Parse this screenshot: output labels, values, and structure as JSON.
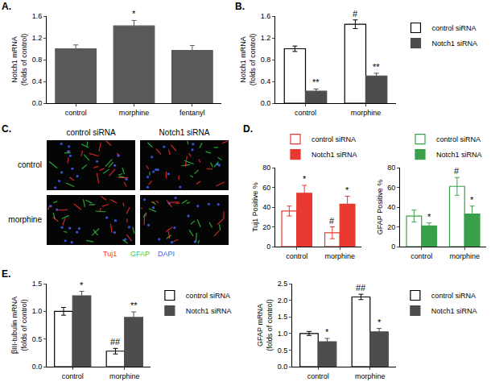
{
  "chart_data": [
    {
      "panel": "A.",
      "type": "bar",
      "categories": [
        "control",
        "morphine",
        "fentanyl"
      ],
      "ylabel": [
        "Notch1 mRNA",
        "(folds of control)"
      ],
      "ylim": [
        0,
        1.6
      ],
      "yticks": [
        {
          "value": 0,
          "label": "0.0"
        },
        0.4,
        0.8,
        1.2,
        1.6
      ],
      "series": [
        {
          "values": [
            1.0,
            1.42,
            0.97
          ],
          "errors": [
            0.07,
            0.1,
            0.09
          ],
          "color": "#595959"
        }
      ],
      "annotations": [
        {
          "category": "morphine",
          "series": 0,
          "text": "*"
        }
      ]
    },
    {
      "panel": "B.",
      "type": "bar",
      "categories": [
        "control",
        "morphine"
      ],
      "ylabel": [
        "Notch1 mRNA",
        "(folds of control)"
      ],
      "ylim": [
        0,
        1.6
      ],
      "yticks": [
        {
          "value": 0,
          "label": "0.0"
        },
        0.4,
        0.8,
        1.2,
        1.6
      ],
      "legend": "right",
      "series": [
        {
          "name": "control siRNA",
          "values": [
            1.0,
            1.45
          ],
          "errors": [
            0.05,
            0.08
          ],
          "color": "#000000",
          "marker": "hollow"
        },
        {
          "name": "Notch1 siRNA",
          "values": [
            0.22,
            0.5
          ],
          "errors": [
            0.04,
            0.05
          ],
          "color": "#4d4d4d"
        }
      ],
      "annotations": [
        {
          "category": "control",
          "series": 1,
          "text": "**"
        },
        {
          "category": "morphine",
          "series": 0,
          "text": "#"
        },
        {
          "category": "morphine",
          "series": 1,
          "text": "**"
        }
      ]
    },
    {
      "panel": "D.",
      "type": "bar",
      "categories": [
        "control",
        "morphine"
      ],
      "ylabel": [
        "Tuj1 Positive %"
      ],
      "ylim": [
        0,
        80
      ],
      "yticks": [
        0,
        20,
        40,
        60,
        80
      ],
      "legend": "top",
      "series": [
        {
          "name": "control siRNA",
          "values": [
            36,
            14
          ],
          "errors": [
            5,
            6
          ],
          "color": "#e8382f",
          "marker": "hollow"
        },
        {
          "name": "Notch1 siRNA",
          "values": [
            54,
            43
          ],
          "errors": [
            8,
            8
          ],
          "color": "#e8382f"
        }
      ],
      "annotations": [
        {
          "category": "control",
          "series": 1,
          "text": "*"
        },
        {
          "category": "morphine",
          "series": 0,
          "text": "#"
        },
        {
          "category": "morphine",
          "series": 1,
          "text": "*"
        }
      ]
    },
    {
      "type": "bar",
      "categories": [
        "control",
        "morphine"
      ],
      "ylabel": [
        "GFAP Positive %"
      ],
      "ylim": [
        0,
        80
      ],
      "yticks": [
        0,
        20,
        40,
        60,
        80
      ],
      "legend": "top",
      "series": [
        {
          "name": "control siRNA",
          "values": [
            31,
            61
          ],
          "errors": [
            6,
            9
          ],
          "color": "#3aa04a",
          "marker": "hollow"
        },
        {
          "name": "Notch1 siRNA",
          "values": [
            21,
            33
          ],
          "errors": [
            3,
            8
          ],
          "color": "#3aa04a"
        }
      ],
      "annotations": [
        {
          "category": "control",
          "series": 1,
          "text": "*"
        },
        {
          "category": "morphine",
          "series": 0,
          "text": "#"
        },
        {
          "category": "morphine",
          "series": 1,
          "text": "*"
        }
      ]
    },
    {
      "panel": "E.",
      "type": "bar",
      "categories": [
        "control",
        "morphine"
      ],
      "ylabel": [
        "βIII-tubulin mRNA",
        "(folds of control)"
      ],
      "ylim": [
        0,
        1.5
      ],
      "yticks": [
        {
          "value": 0,
          "label": "0.0"
        },
        0.5,
        {
          "value": 1,
          "label": "1.0"
        },
        1.5
      ],
      "legend": "right",
      "series": [
        {
          "name": "control siRNA",
          "values": [
            1.0,
            0.28
          ],
          "errors": [
            0.07,
            0.05
          ],
          "color": "#000000",
          "marker": "hollow"
        },
        {
          "name": "Notch1 siRNA",
          "values": [
            1.28,
            0.89
          ],
          "errors": [
            0.08,
            0.1
          ],
          "color": "#4d4d4d"
        }
      ],
      "annotations": [
        {
          "category": "control",
          "series": 1,
          "text": "*"
        },
        {
          "category": "morphine",
          "series": 0,
          "text": "##"
        },
        {
          "category": "morphine",
          "series": 1,
          "text": "**"
        }
      ]
    },
    {
      "type": "bar",
      "categories": [
        "control",
        "morphine"
      ],
      "ylabel": [
        "GFAP mRNA",
        "(folds of control)"
      ],
      "ylim": [
        0,
        2.5
      ],
      "yticks": [
        {
          "value": 0,
          "label": "0.0"
        },
        0.5,
        {
          "value": 1,
          "label": "1.0"
        },
        1.5,
        {
          "value": 2,
          "label": "2.0"
        },
        2.5
      ],
      "legend": "right",
      "series": [
        {
          "name": "control siRNA",
          "values": [
            1.0,
            2.1
          ],
          "errors": [
            0.06,
            0.08
          ],
          "color": "#000000",
          "marker": "hollow"
        },
        {
          "name": "Notch1 siRNA",
          "values": [
            0.75,
            1.05
          ],
          "errors": [
            0.1,
            0.1
          ],
          "color": "#4d4d4d"
        }
      ],
      "annotations": [
        {
          "category": "control",
          "series": 1,
          "text": "*"
        },
        {
          "category": "morphine",
          "series": 0,
          "text": "##"
        },
        {
          "category": "morphine",
          "series": 1,
          "text": "*"
        }
      ]
    }
  ],
  "image_panel": {
    "panel": "C.",
    "columns": [
      "control siRNA",
      "Notch1 siRNA"
    ],
    "rows": [
      "control",
      "morphine"
    ],
    "stains": [
      {
        "text": "Tuj1",
        "color": "#ff3030"
      },
      {
        "text": "GFAP",
        "color": "#30d040"
      },
      {
        "text": "DAPI",
        "color": "#4060ff"
      }
    ]
  }
}
